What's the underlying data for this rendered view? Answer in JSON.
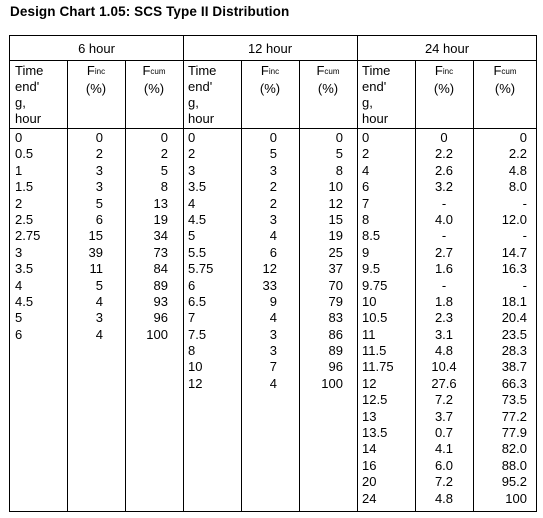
{
  "title": "Design Chart 1.05:  SCS Type II Distribution",
  "groups": [
    {
      "label": "6 hour",
      "col_time": "Time end'g, hour",
      "time": [
        "0",
        "0.5",
        "1",
        "1.5",
        "2",
        "2.5",
        "2.75",
        "3",
        "3.5",
        "4",
        "4.5",
        "5",
        "6"
      ],
      "finc": [
        "0",
        "2",
        "3",
        "3",
        "5",
        "6",
        "15",
        "39",
        "11",
        "5",
        "4",
        "3",
        "4"
      ],
      "fcum": [
        "0",
        "2",
        "5",
        "8",
        "13",
        "19",
        "34",
        "73",
        "84",
        "89",
        "93",
        "96",
        "100"
      ]
    },
    {
      "label": "12 hour",
      "time": [
        "0",
        "2",
        "3",
        "3.5",
        "4",
        "4.5",
        "5",
        "5.5",
        "5.75",
        "6",
        "6.5",
        "7",
        "7.5",
        "8",
        "10",
        "12"
      ],
      "finc": [
        "0",
        "5",
        "3",
        "2",
        "2",
        "3",
        "4",
        "6",
        "12",
        "33",
        "9",
        "4",
        "3",
        "3",
        "7",
        "4"
      ],
      "fcum": [
        "0",
        "5",
        "8",
        "10",
        "12",
        "15",
        "19",
        "25",
        "37",
        "70",
        "79",
        "83",
        "86",
        "89",
        "96",
        "100"
      ]
    },
    {
      "label": "24 hour",
      "time": [
        "0",
        "2",
        "4",
        "6",
        "7",
        "8",
        "8.5",
        "9",
        "9.5",
        "9.75",
        "10",
        "10.5",
        "11",
        "11.5",
        "11.75",
        "12",
        "12.5",
        "13",
        "13.5",
        "14",
        "16",
        "20",
        "24"
      ],
      "finc": [
        "0",
        "2.2",
        "2.6",
        "3.2",
        "-",
        "4.0",
        "-",
        "2.7",
        "1.6",
        "-",
        "1.8",
        "2.3",
        "3.1",
        "4.8",
        "10.4",
        "27.6",
        "7.2",
        "3.7",
        "0.7",
        "4.1",
        "6.0",
        "7.2",
        "4.8"
      ],
      "fcum": [
        "0",
        "2.2",
        "4.8",
        "8.0",
        "-",
        "12.0",
        "-",
        "14.7",
        "16.3",
        "-",
        "18.1",
        "20.4",
        "23.5",
        "28.3",
        "38.7",
        "66.3",
        "73.5",
        "77.2",
        "77.9",
        "82.0",
        "88.0",
        "95.2",
        "100"
      ]
    }
  ],
  "headers": {
    "time_lines": [
      "Time",
      "end'",
      "g,",
      "hour"
    ],
    "finc_main": "F",
    "finc_sub": "inc",
    "fcum_main": "F",
    "fcum_sub": "cum",
    "pct": "(%)"
  }
}
